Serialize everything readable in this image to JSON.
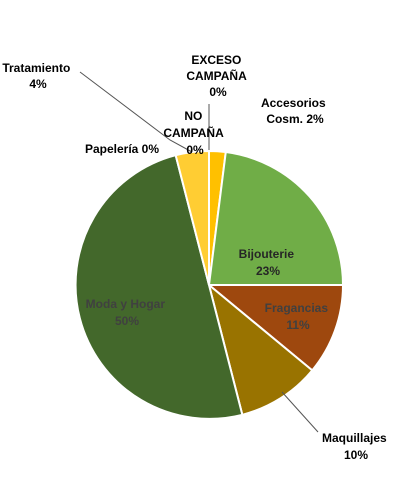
{
  "chart_data": {
    "type": "pie",
    "title": "",
    "legend": "none",
    "slices": [
      {
        "name": "EXCESO CAMPAÑA",
        "value": 0,
        "label_line1": "EXCESO",
        "label_line2": "CAMPAÑA",
        "label_line3": "0%",
        "color": "#f4b400"
      },
      {
        "name": "Accesorios Cosm.",
        "value": 2,
        "label_line1": "Accesorios",
        "label_line2": "Cosm. 2%",
        "color": "#ffc000"
      },
      {
        "name": "Bijouterie",
        "value": 23,
        "label_line1": "Bijouterie",
        "label_line2": "23%",
        "color": "#70ad47"
      },
      {
        "name": "Fragancias",
        "value": 11,
        "label_line1": "Fragancias",
        "label_line2": "11%",
        "color": "#9e480e"
      },
      {
        "name": "Maquillajes",
        "value": 10,
        "label_line1": "Maquillajes",
        "label_line2": "10%",
        "color": "#997300"
      },
      {
        "name": "Moda y Hogar",
        "value": 50,
        "label_line1": "Moda y Hogar",
        "label_line2": "50%",
        "color": "#43682b"
      },
      {
        "name": "Papelería",
        "value": 0,
        "label_line1": "Papelería 0%",
        "color": "#c9b36a"
      },
      {
        "name": "Tratamiento",
        "value": 4,
        "label_line1": "Tratamiento",
        "label_line2": "4%",
        "color": "#ffcd33"
      },
      {
        "name": "NO CAMPAÑA",
        "value": 0,
        "label_line1": "NO",
        "label_line2": "CAMPAÑA",
        "label_line3": "0%",
        "color": "#e0e0e0"
      }
    ]
  }
}
